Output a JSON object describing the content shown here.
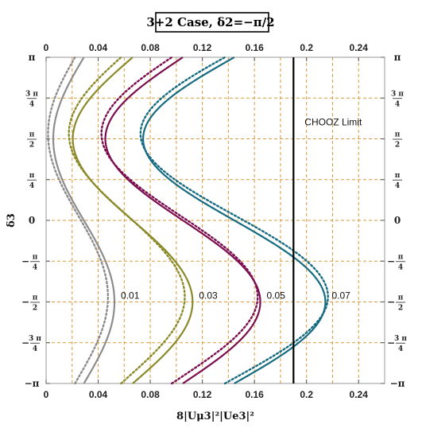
{
  "chart_data": {
    "type": "line",
    "title": "3+2 Case, δ2=−π/2",
    "xlabel": "8|Uμ3|²|Ue3|²",
    "ylabel": "δ3",
    "xlim": [
      0,
      0.26
    ],
    "ylim": [
      -3.1416,
      3.1416
    ],
    "grid": true,
    "x_ticks": [
      "0",
      "0.04",
      "0.08",
      "0.12",
      "0.16",
      "0.2",
      "0.24"
    ],
    "x_tick_values": [
      0,
      0.04,
      0.08,
      0.12,
      0.16,
      0.2,
      0.24
    ],
    "y_ticks": [
      {
        "value": 3.1416,
        "label": "π"
      },
      {
        "value": 2.3562,
        "num": "3 π",
        "den": "4"
      },
      {
        "value": 1.5708,
        "num": "π",
        "den": "2"
      },
      {
        "value": 0.7854,
        "num": "π",
        "den": "4"
      },
      {
        "value": 0,
        "label": "0"
      },
      {
        "value": -0.7854,
        "neg": "−",
        "num": "π",
        "den": "4"
      },
      {
        "value": -1.5708,
        "neg": "−",
        "num": "π",
        "den": "2"
      },
      {
        "value": -2.3562,
        "neg": "−",
        "num": "3 π",
        "den": "4"
      },
      {
        "value": -3.1416,
        "label": "−π"
      }
    ],
    "series": [
      {
        "label": "0.01",
        "color": "#8c8c8c",
        "solid": {
          "x_min": 0.0055,
          "x_max": 0.0525,
          "y_at_max": -1.5708
        },
        "dotted": {
          "x_min": 0.0015,
          "x_max": 0.0475,
          "y_at_max": -1.4708
        }
      },
      {
        "label": "0.03",
        "color": "#8a8a2a",
        "solid": {
          "x_min": 0.0205,
          "x_max": 0.1125,
          "y_at_max": -1.5708
        },
        "dotted": {
          "x_min": 0.0175,
          "x_max": 0.1065,
          "y_at_max": -1.4708
        }
      },
      {
        "label": "0.05",
        "color": "#7a0e4e",
        "solid": {
          "x_min": 0.0455,
          "x_max": 0.1645,
          "y_at_max": -1.5708
        },
        "dotted": {
          "x_min": 0.0425,
          "x_max": 0.1625,
          "y_at_max": -1.4708
        }
      },
      {
        "label": "0.07",
        "color": "#166b80",
        "solid": {
          "x_min": 0.0745,
          "x_max": 0.2145,
          "y_at_max": -1.5708
        },
        "dotted": {
          "x_min": 0.0725,
          "x_max": 0.2165,
          "y_at_max": -1.4708
        }
      }
    ],
    "vertical_line": {
      "x": 0.19,
      "label": "CHOOZ Limit",
      "color": "#000000"
    },
    "grid_color": "#d89a3a",
    "frame_color": "#9a9a9a"
  }
}
